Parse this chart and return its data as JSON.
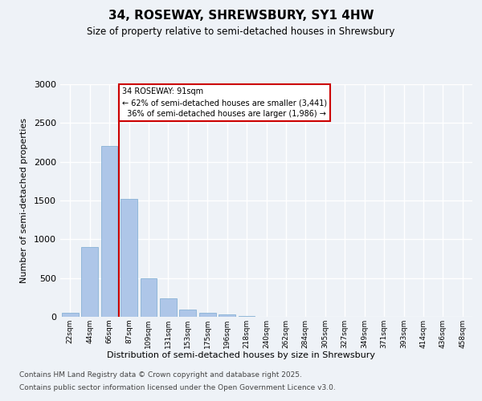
{
  "title": "34, ROSEWAY, SHREWSBURY, SY1 4HW",
  "subtitle": "Size of property relative to semi-detached houses in Shrewsbury",
  "xlabel": "Distribution of semi-detached houses by size in Shrewsbury",
  "ylabel": "Number of semi-detached properties",
  "bar_labels": [
    "22sqm",
    "44sqm",
    "66sqm",
    "87sqm",
    "109sqm",
    "131sqm",
    "153sqm",
    "175sqm",
    "196sqm",
    "218sqm",
    "240sqm",
    "262sqm",
    "284sqm",
    "305sqm",
    "327sqm",
    "349sqm",
    "371sqm",
    "393sqm",
    "414sqm",
    "436sqm",
    "458sqm"
  ],
  "bar_values": [
    50,
    900,
    2200,
    1520,
    500,
    240,
    95,
    55,
    30,
    15,
    5,
    0,
    0,
    0,
    0,
    0,
    0,
    0,
    0,
    0,
    0
  ],
  "bar_color": "#aec6e8",
  "bar_edge_color": "#7aaad0",
  "property_line_bar_idx": 3,
  "property_sqm": 91,
  "property_label": "34 ROSEWAY: 91sqm",
  "pct_smaller": 62,
  "n_smaller": 3441,
  "pct_larger": 36,
  "n_larger": 1986,
  "annotation_box_color": "#cc0000",
  "vline_color": "#cc0000",
  "ylim": [
    0,
    3000
  ],
  "yticks": [
    0,
    500,
    1000,
    1500,
    2000,
    2500,
    3000
  ],
  "bg_color": "#eef2f7",
  "plot_bg_color": "#eef2f7",
  "grid_color": "#ffffff",
  "footer_line1": "Contains HM Land Registry data © Crown copyright and database right 2025.",
  "footer_line2": "Contains public sector information licensed under the Open Government Licence v3.0."
}
